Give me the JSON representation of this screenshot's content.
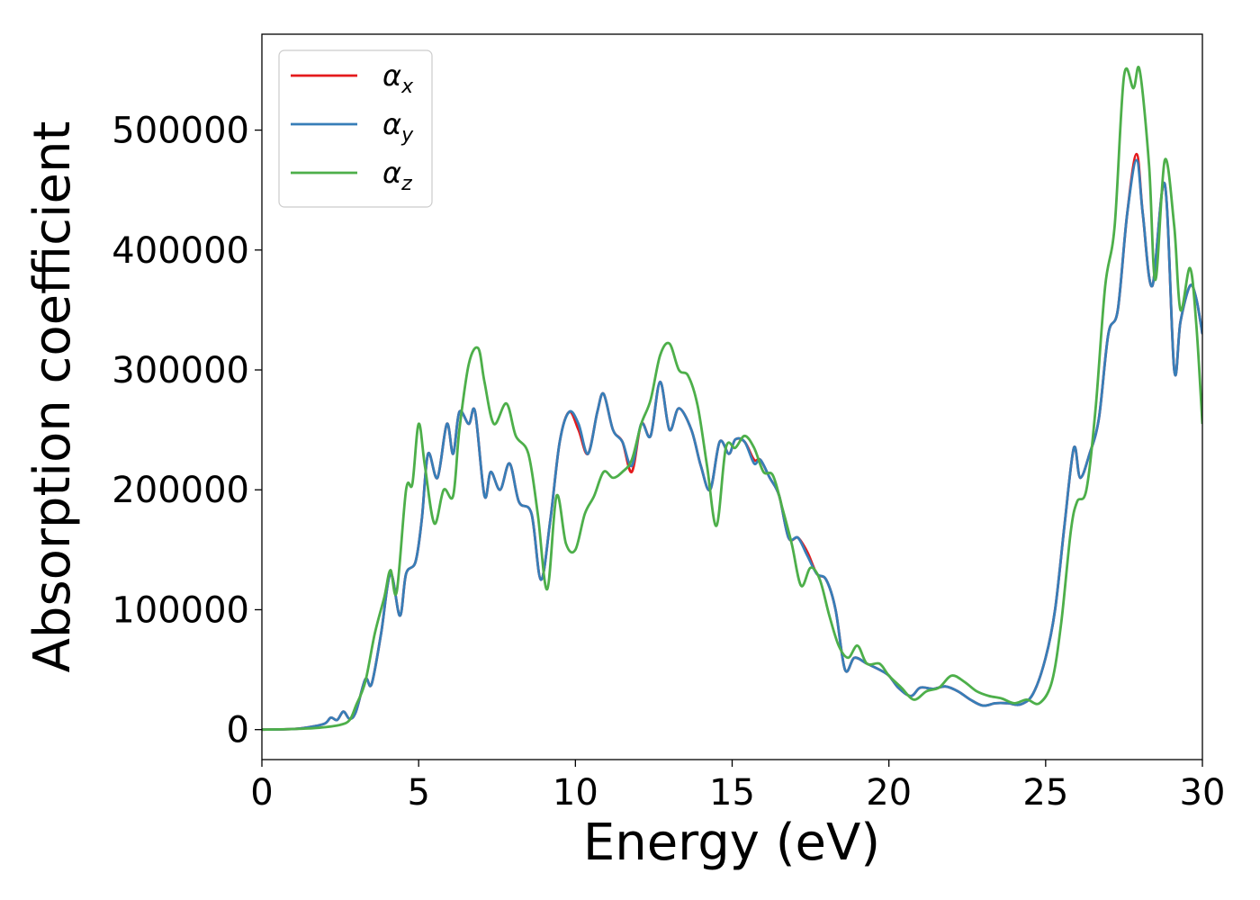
{
  "chart_data": {
    "type": "line",
    "title": "",
    "xlabel": "Energy (eV)",
    "ylabel": "Absorption coefficient",
    "xlim": [
      0,
      30
    ],
    "ylim": [
      -25000,
      580000
    ],
    "xticks": [
      0,
      5,
      10,
      15,
      20,
      25,
      30
    ],
    "xtick_labels": [
      "0",
      "5",
      "10",
      "15",
      "20",
      "25",
      "30"
    ],
    "yticks": [
      0,
      100000,
      200000,
      300000,
      400000,
      500000
    ],
    "ytick_labels": [
      "0",
      "100000",
      "200000",
      "300000",
      "400000",
      "500000"
    ],
    "grid": false,
    "legend_position": "top-left",
    "series": [
      {
        "name": "αx",
        "legend_main": "α",
        "legend_sub": "x",
        "color": "#e41a1c",
        "x": [
          0,
          1,
          1.5,
          2,
          2.2,
          2.4,
          2.6,
          2.8,
          3.0,
          3.3,
          3.5,
          3.8,
          4.1,
          4.4,
          4.6,
          4.9,
          5.1,
          5.3,
          5.6,
          5.9,
          6.1,
          6.3,
          6.6,
          6.8,
          7.1,
          7.3,
          7.6,
          7.9,
          8.2,
          8.6,
          8.9,
          9.2,
          9.5,
          9.8,
          10.1,
          10.4,
          10.7,
          10.9,
          11.2,
          11.5,
          11.8,
          12.1,
          12.4,
          12.7,
          13.0,
          13.3,
          13.7,
          14.0,
          14.3,
          14.6,
          14.9,
          15.1,
          15.4,
          15.7,
          15.9,
          16.2,
          16.5,
          16.8,
          17.1,
          17.4,
          17.7,
          18.0,
          18.3,
          18.6,
          18.9,
          19.3,
          19.7,
          20.0,
          20.3,
          20.7,
          21.0,
          21.4,
          21.8,
          22.2,
          22.6,
          23.0,
          23.4,
          23.8,
          24.2,
          24.6,
          25.0,
          25.3,
          25.6,
          25.9,
          26.1,
          26.4,
          26.7,
          27.0,
          27.3,
          27.6,
          27.9,
          28.1,
          28.4,
          28.8,
          29.1,
          29.3,
          29.6,
          29.8,
          30.0
        ],
        "y": [
          0,
          500,
          2000,
          5000,
          10000,
          8000,
          15000,
          9000,
          15000,
          42000,
          38000,
          80000,
          130000,
          95000,
          130000,
          140000,
          175000,
          230000,
          210000,
          255000,
          230000,
          265000,
          255000,
          265000,
          195000,
          215000,
          200000,
          222000,
          190000,
          180000,
          125000,
          175000,
          240000,
          265000,
          250000,
          230000,
          265000,
          280000,
          250000,
          240000,
          215000,
          255000,
          245000,
          290000,
          250000,
          268000,
          250000,
          220000,
          200000,
          240000,
          230000,
          242000,
          240000,
          225000,
          225000,
          210000,
          195000,
          160000,
          160000,
          148000,
          130000,
          125000,
          100000,
          50000,
          60000,
          55000,
          50000,
          45000,
          35000,
          28000,
          35000,
          34000,
          36000,
          32000,
          25000,
          20000,
          22000,
          22000,
          21000,
          30000,
          60000,
          100000,
          170000,
          235000,
          210000,
          230000,
          260000,
          330000,
          350000,
          430000,
          480000,
          430000,
          370000,
          455000,
          300000,
          340000,
          370000,
          360000,
          330000
        ]
      },
      {
        "name": "αy",
        "legend_main": "α",
        "legend_sub": "y",
        "color": "#377eb8",
        "x": [
          0,
          1,
          1.5,
          2,
          2.2,
          2.4,
          2.6,
          2.8,
          3.0,
          3.3,
          3.5,
          3.8,
          4.1,
          4.4,
          4.6,
          4.9,
          5.1,
          5.3,
          5.6,
          5.9,
          6.1,
          6.3,
          6.6,
          6.8,
          7.1,
          7.3,
          7.6,
          7.9,
          8.2,
          8.6,
          8.9,
          9.2,
          9.5,
          9.8,
          10.1,
          10.4,
          10.7,
          10.9,
          11.2,
          11.5,
          11.8,
          12.1,
          12.4,
          12.7,
          13.0,
          13.3,
          13.7,
          14.0,
          14.3,
          14.6,
          14.9,
          15.1,
          15.4,
          15.7,
          15.9,
          16.2,
          16.5,
          16.8,
          17.1,
          17.4,
          17.7,
          18.0,
          18.3,
          18.6,
          18.9,
          19.3,
          19.7,
          20.0,
          20.3,
          20.7,
          21.0,
          21.4,
          21.8,
          22.2,
          22.6,
          23.0,
          23.4,
          23.8,
          24.2,
          24.6,
          25.0,
          25.3,
          25.6,
          25.9,
          26.1,
          26.4,
          26.7,
          27.0,
          27.3,
          27.6,
          27.9,
          28.1,
          28.4,
          28.8,
          29.1,
          29.3,
          29.6,
          29.8,
          30.0
        ],
        "y": [
          0,
          500,
          2000,
          5000,
          10000,
          8000,
          15000,
          9000,
          15000,
          42000,
          38000,
          80000,
          130000,
          95000,
          130000,
          140000,
          175000,
          230000,
          210000,
          255000,
          230000,
          265000,
          255000,
          265000,
          195000,
          215000,
          200000,
          222000,
          190000,
          180000,
          125000,
          175000,
          240000,
          265000,
          255000,
          230000,
          265000,
          280000,
          250000,
          240000,
          220000,
          255000,
          245000,
          290000,
          250000,
          268000,
          250000,
          220000,
          200000,
          240000,
          230000,
          242000,
          240000,
          222000,
          225000,
          210000,
          195000,
          160000,
          160000,
          145000,
          130000,
          125000,
          100000,
          50000,
          60000,
          55000,
          50000,
          45000,
          35000,
          28000,
          35000,
          34000,
          36000,
          32000,
          25000,
          20000,
          22000,
          22000,
          21000,
          30000,
          60000,
          100000,
          170000,
          235000,
          210000,
          230000,
          260000,
          330000,
          350000,
          430000,
          475000,
          430000,
          370000,
          455000,
          300000,
          340000,
          370000,
          360000,
          330000
        ]
      },
      {
        "name": "αz",
        "legend_main": "α",
        "legend_sub": "z",
        "color": "#4daf4a",
        "x": [
          0,
          1,
          1.5,
          2,
          2.5,
          2.8,
          3.0,
          3.3,
          3.6,
          3.9,
          4.1,
          4.3,
          4.6,
          4.8,
          5.0,
          5.2,
          5.5,
          5.8,
          6.1,
          6.3,
          6.6,
          6.9,
          7.1,
          7.4,
          7.8,
          8.1,
          8.5,
          8.8,
          9.1,
          9.4,
          9.7,
          10.0,
          10.3,
          10.6,
          10.9,
          11.2,
          11.5,
          11.8,
          12.1,
          12.4,
          12.7,
          13.0,
          13.3,
          13.6,
          13.9,
          14.2,
          14.5,
          14.8,
          15.1,
          15.4,
          15.7,
          16.0,
          16.3,
          16.6,
          16.9,
          17.2,
          17.5,
          17.8,
          18.1,
          18.4,
          18.7,
          19.0,
          19.3,
          19.7,
          20.0,
          20.4,
          20.8,
          21.2,
          21.6,
          22.0,
          22.4,
          22.8,
          23.2,
          23.6,
          24.0,
          24.4,
          24.8,
          25.2,
          25.5,
          25.8,
          26.0,
          26.3,
          26.6,
          26.9,
          27.2,
          27.5,
          27.8,
          28.0,
          28.3,
          28.5,
          28.8,
          29.1,
          29.3,
          29.6,
          29.8,
          30.0
        ],
        "y": [
          0,
          500,
          1000,
          2000,
          4000,
          8000,
          20000,
          40000,
          80000,
          110000,
          133000,
          115000,
          200000,
          205000,
          255000,
          220000,
          172000,
          200000,
          195000,
          250000,
          305000,
          318000,
          290000,
          255000,
          272000,
          245000,
          230000,
          180000,
          117000,
          195000,
          155000,
          150000,
          180000,
          195000,
          215000,
          210000,
          215000,
          225000,
          255000,
          275000,
          312000,
          322000,
          300000,
          295000,
          270000,
          220000,
          170000,
          235000,
          235000,
          245000,
          235000,
          215000,
          212000,
          185000,
          155000,
          120000,
          135000,
          125000,
          95000,
          70000,
          60000,
          70000,
          55000,
          55000,
          45000,
          35000,
          25000,
          32000,
          35000,
          45000,
          40000,
          32000,
          28000,
          26000,
          22000,
          25000,
          22000,
          40000,
          90000,
          165000,
          190000,
          200000,
          270000,
          370000,
          420000,
          545000,
          535000,
          550000,
          470000,
          375000,
          475000,
          420000,
          350000,
          385000,
          340000,
          255000
        ]
      }
    ]
  }
}
